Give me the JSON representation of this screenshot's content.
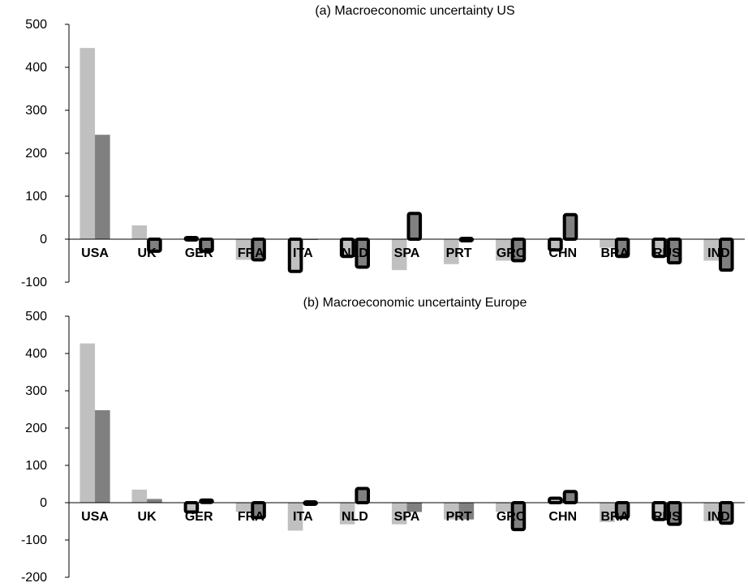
{
  "chart_data": [
    {
      "type": "bar",
      "title": "(a) Macroeconomic uncertainty US",
      "categories": [
        "USA",
        "UK",
        "GER",
        "FRA",
        "ITA",
        "NLD",
        "SPA",
        "PRT",
        "GRC",
        "CHN",
        "BRA",
        "RUS",
        "IND"
      ],
      "yticks": [
        500,
        400,
        300,
        200,
        100,
        0,
        -100
      ],
      "ylim": [
        -100,
        500
      ],
      "grid": false,
      "series": [
        {
          "color": "#c0c0c0",
          "values": [
            445,
            32,
            2,
            -48,
            -75,
            -40,
            -72,
            -58,
            -50,
            -25,
            -20,
            -40,
            -50
          ],
          "emphasized": [
            false,
            false,
            true,
            false,
            true,
            true,
            false,
            false,
            false,
            true,
            false,
            true,
            false
          ]
        },
        {
          "color": "#808080",
          "values": [
            243,
            -28,
            -28,
            -48,
            0,
            -65,
            60,
            -2,
            -50,
            57,
            -40,
            -55,
            -72
          ],
          "emphasized": [
            false,
            true,
            true,
            true,
            false,
            true,
            true,
            true,
            true,
            true,
            true,
            true,
            true
          ]
        }
      ]
    },
    {
      "type": "bar",
      "title": "(b) Macroeconomic uncertainty Europe",
      "categories": [
        "USA",
        "UK",
        "GER",
        "FRA",
        "ITA",
        "NLD",
        "SPA",
        "PRT",
        "GRC",
        "CHN",
        "BRA",
        "RUS",
        "IND"
      ],
      "yticks": [
        500,
        400,
        300,
        200,
        100,
        0,
        -100,
        -200
      ],
      "ylim": [
        -200,
        500
      ],
      "grid": false,
      "series": [
        {
          "color": "#c0c0c0",
          "values": [
            427,
            35,
            -25,
            -25,
            -75,
            -58,
            -58,
            -45,
            -25,
            12,
            -52,
            -45,
            -50
          ],
          "emphasized": [
            false,
            false,
            true,
            false,
            false,
            false,
            false,
            false,
            false,
            true,
            false,
            true,
            false
          ]
        },
        {
          "color": "#808080",
          "values": [
            248,
            10,
            5,
            -40,
            -2,
            38,
            -25,
            -45,
            -72,
            30,
            -40,
            -58,
            -55
          ],
          "emphasized": [
            false,
            false,
            true,
            true,
            true,
            true,
            false,
            false,
            true,
            true,
            true,
            true,
            true
          ]
        }
      ]
    }
  ]
}
